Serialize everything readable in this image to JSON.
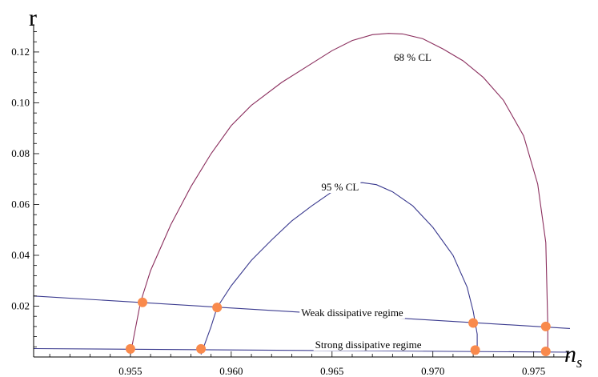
{
  "chart_data": {
    "type": "line",
    "xlabel": "n",
    "xlabel_sub": "s",
    "ylabel": "r",
    "xlim": [
      0.9502,
      0.9768
    ],
    "ylim": [
      0.0,
      0.131
    ],
    "x_ticks": [
      0.955,
      0.96,
      0.965,
      0.97,
      0.975
    ],
    "x_tick_labels": [
      "0.955",
      "0.960",
      "0.965",
      "0.970",
      "0.975"
    ],
    "y_ticks": [
      0.02,
      0.04,
      0.06,
      0.08,
      0.1,
      0.12
    ],
    "y_tick_labels": [
      "0.02",
      "0.04",
      "0.06",
      "0.08",
      "0.10",
      "0.12"
    ],
    "grid": false,
    "series": [
      {
        "name": "68 % CL",
        "color": "#8b2f5e",
        "x": [
          0.955,
          0.9555,
          0.956,
          0.957,
          0.958,
          0.959,
          0.96,
          0.961,
          0.9625,
          0.964,
          0.965,
          0.966,
          0.967,
          0.9678,
          0.9685,
          0.9695,
          0.9705,
          0.9715,
          0.9725,
          0.9735,
          0.9745,
          0.9752,
          0.9756,
          0.9757,
          0.9757
        ],
        "y": [
          0.001,
          0.0215,
          0.034,
          0.052,
          0.067,
          0.08,
          0.091,
          0.099,
          0.108,
          0.1155,
          0.1205,
          0.1245,
          0.1268,
          0.1273,
          0.1271,
          0.1252,
          0.1212,
          0.1165,
          0.11,
          0.101,
          0.087,
          0.068,
          0.045,
          0.012,
          0.001
        ]
      },
      {
        "name": "95 % CL",
        "color": "#3b3b8f",
        "x": [
          0.9585,
          0.959,
          0.9593,
          0.96,
          0.961,
          0.962,
          0.963,
          0.964,
          0.965,
          0.9658,
          0.9665,
          0.9672,
          0.968,
          0.969,
          0.97,
          0.971,
          0.9717,
          0.972,
          0.9722,
          0.9722
        ],
        "y": [
          0.001,
          0.012,
          0.0195,
          0.028,
          0.038,
          0.046,
          0.0535,
          0.0595,
          0.065,
          0.0682,
          0.0686,
          0.0678,
          0.065,
          0.0595,
          0.051,
          0.04,
          0.0275,
          0.018,
          0.009,
          0.001
        ]
      },
      {
        "name": "Weak dissipative regime",
        "color": "#3b3b8f",
        "x": [
          0.9502,
          0.9768
        ],
        "y": [
          0.024,
          0.0112
        ]
      },
      {
        "name": "Strong dissipative regime",
        "color": "#3b3b8f",
        "x": [
          0.9502,
          0.9768
        ],
        "y": [
          0.0033,
          0.0019
        ]
      }
    ],
    "points": {
      "color": "#f98a4c",
      "x": [
        0.955,
        0.9556,
        0.9585,
        0.9593,
        0.9721,
        0.972,
        0.9756,
        0.9756
      ],
      "y": [
        0.0032,
        0.0215,
        0.0032,
        0.0195,
        0.0027,
        0.0134,
        0.0022,
        0.012
      ]
    },
    "annotations": [
      {
        "text": "68 % CL",
        "x": 0.969,
        "y": 0.1165
      },
      {
        "text": "95 % CL",
        "x": 0.9654,
        "y": 0.0655
      },
      {
        "text": "Weak dissipative regime",
        "x": 0.966,
        "y": 0.016
      },
      {
        "text": "Strong dissipative regime",
        "x": 0.9668,
        "y": 0.0034
      }
    ]
  }
}
